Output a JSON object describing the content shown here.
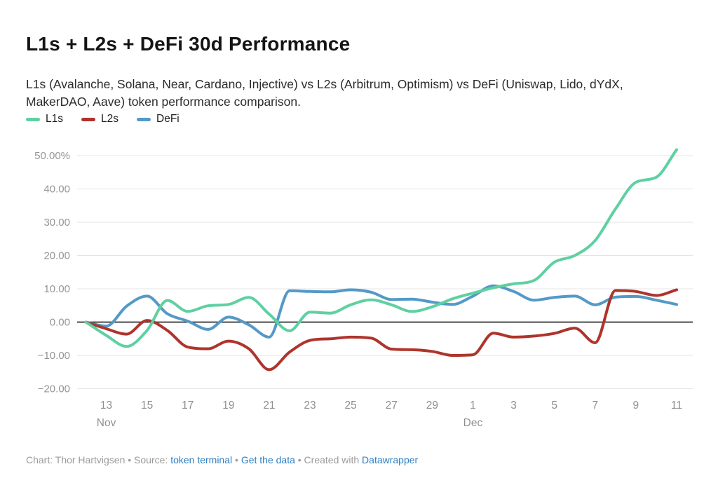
{
  "header": {
    "title": "L1s + L2s + DeFi 30d Performance",
    "subtitle": "L1s (Avalanche, Solana, Near, Cardano, Injective) vs L2s (Arbitrum, Optimism) vs DeFi (Uniswap, Lido, dYdX, MakerDAO, Aave) token performance comparison."
  },
  "footer": {
    "credit": "Chart: Thor Hartvigsen",
    "sep1": " • ",
    "source_label": "Source: ",
    "source_link": "token terminal",
    "sep2": " • ",
    "get_data_link": "Get the data",
    "sep3": " • Created with ",
    "tool_link": "Datawrapper"
  },
  "chart_data": {
    "type": "line",
    "title": "L1s + L2s + DeFi 30d Performance",
    "xlabel": "",
    "ylabel": "",
    "ylim": [
      -20,
      52.5
    ],
    "grid": true,
    "legend_position": "top-left",
    "x": [
      "Nov 12",
      "Nov 13",
      "Nov 14",
      "Nov 15",
      "Nov 16",
      "Nov 17",
      "Nov 18",
      "Nov 19",
      "Nov 20",
      "Nov 21",
      "Nov 22",
      "Nov 23",
      "Nov 24",
      "Nov 25",
      "Nov 26",
      "Nov 27",
      "Nov 28",
      "Nov 29",
      "Nov 30",
      "Dec 1",
      "Dec 2",
      "Dec 3",
      "Dec 4",
      "Dec 5",
      "Dec 6",
      "Dec 7",
      "Dec 8",
      "Dec 9",
      "Dec 10",
      "Dec 11"
    ],
    "series": [
      {
        "name": "L1s",
        "color": "#5fd0a1",
        "values": [
          0,
          -4,
          -7.3,
          -2.5,
          6.5,
          3.2,
          4.9,
          5.3,
          7.4,
          2.4,
          -2.6,
          3.0,
          2.7,
          5.2,
          6.7,
          5.2,
          3.2,
          4.6,
          7.0,
          8.7,
          10.3,
          11.5,
          12.5,
          18.0,
          20.0,
          24.5,
          34.0,
          42.0,
          43.5,
          51.8
        ]
      },
      {
        "name": "L2s",
        "color": "#ae342c",
        "values": [
          0,
          -2,
          -3.6,
          0.5,
          -2.5,
          -7.5,
          -8.0,
          -5.7,
          -8.0,
          -14.3,
          -9.0,
          -5.5,
          -5.0,
          -4.5,
          -4.8,
          -8.1,
          -8.3,
          -8.8,
          -10.0,
          -9.8,
          -3.3,
          -4.5,
          -4.2,
          -3.4,
          -1.8,
          -6.2,
          9.5,
          9.2,
          8.0,
          9.7
        ]
      },
      {
        "name": "DeFi",
        "color": "#5499c7",
        "values": [
          0,
          -1.2,
          4.8,
          7.8,
          2.5,
          0.3,
          -2.2,
          1.5,
          -0.8,
          -4.5,
          9.4,
          9.2,
          9.1,
          9.7,
          9.0,
          6.8,
          6.9,
          6.0,
          5.3,
          7.8,
          10.9,
          9.2,
          6.6,
          7.4,
          7.8,
          5.2,
          7.5,
          7.7,
          6.6,
          5.3
        ]
      }
    ],
    "yticks": [
      {
        "v": 50,
        "label": "50.00%"
      },
      {
        "v": 40,
        "label": "40.00"
      },
      {
        "v": 30,
        "label": "30.00"
      },
      {
        "v": 20,
        "label": "20.00"
      },
      {
        "v": 10,
        "label": "10.00"
      },
      {
        "v": 0,
        "label": "0.00"
      },
      {
        "v": -10,
        "label": "−10.00"
      },
      {
        "v": -20,
        "label": "−20.00"
      }
    ],
    "xticks": [
      {
        "x": "Nov 13",
        "label": "13",
        "month": "Nov"
      },
      {
        "x": "Nov 15",
        "label": "15"
      },
      {
        "x": "Nov 17",
        "label": "17"
      },
      {
        "x": "Nov 19",
        "label": "19"
      },
      {
        "x": "Nov 21",
        "label": "21"
      },
      {
        "x": "Nov 23",
        "label": "23"
      },
      {
        "x": "Nov 25",
        "label": "25"
      },
      {
        "x": "Nov 27",
        "label": "27"
      },
      {
        "x": "Nov 29",
        "label": "29"
      },
      {
        "x": "Dec 1",
        "label": "1",
        "month": "Dec"
      },
      {
        "x": "Dec 3",
        "label": "3"
      },
      {
        "x": "Dec 5",
        "label": "5"
      },
      {
        "x": "Dec 7",
        "label": "7"
      },
      {
        "x": "Dec 9",
        "label": "9"
      },
      {
        "x": "Dec 11",
        "label": "11"
      }
    ],
    "colors": {
      "zero_line": "#2f2f2f",
      "gridline": "#e4e4e4",
      "axis_text": "#959595",
      "link_blue": "#2f80c2"
    }
  }
}
